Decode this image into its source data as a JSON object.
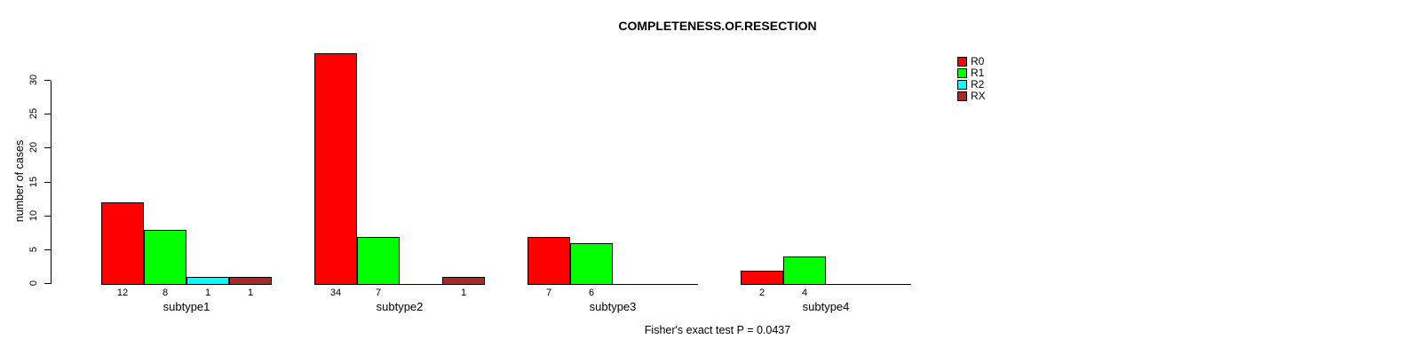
{
  "title": "COMPLETENESS.OF.RESECTION",
  "footnote": "Fisher's exact test P = 0.0437",
  "chart_data": {
    "type": "bar",
    "title": "COMPLETENESS.OF.RESECTION",
    "xlabel": "",
    "ylabel": "number of cases",
    "ylim": [
      0,
      30
    ],
    "yticks": [
      0,
      5,
      10,
      15,
      20,
      25,
      30
    ],
    "grid": false,
    "legend_position": "top-right",
    "background": "#ffffff",
    "axis_color": "#000000",
    "bar_border_color": "#000000",
    "categories": [
      "subtype1",
      "subtype2",
      "subtype3",
      "subtype4"
    ],
    "series": [
      {
        "name": "R0",
        "color": "#FF0000",
        "values": [
          12,
          34,
          7,
          2
        ]
      },
      {
        "name": "R1",
        "color": "#00FF00",
        "values": [
          8,
          7,
          6,
          4
        ]
      },
      {
        "name": "R2",
        "color": "#00FFFF",
        "values": [
          1,
          0,
          0,
          0
        ]
      },
      {
        "name": "RX",
        "color": "#A52A2A",
        "values": [
          1,
          1,
          0,
          0
        ]
      }
    ],
    "bar_value_labels": {
      "subtype1": [
        12,
        8,
        1,
        1
      ],
      "subtype2": [
        34,
        7,
        null,
        1
      ],
      "subtype3": [
        7,
        6,
        null,
        null
      ],
      "subtype4": [
        2,
        4,
        null,
        null
      ]
    },
    "annotation": "Fisher's exact test P = 0.0437"
  }
}
